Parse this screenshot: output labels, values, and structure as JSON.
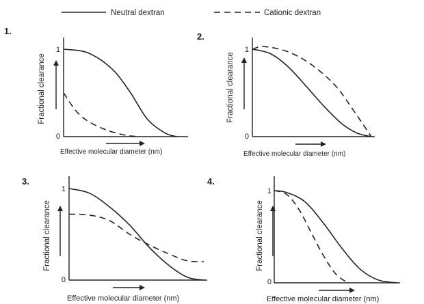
{
  "legend": {
    "neutral_label": "Neutral dextran",
    "cationic_label": "Cationic dextran"
  },
  "chart_data": [
    {
      "type": "line",
      "panel_label": "1.",
      "xlabel": "Effective molecular diameter (nm)",
      "ylabel": "Fractional clearance",
      "yticks": [
        "1",
        "0"
      ],
      "xlim": [
        0,
        1
      ],
      "ylim": [
        0,
        1.2
      ],
      "series": [
        {
          "name": "Neutral dextran",
          "style": "solid",
          "x": [
            0,
            0.2,
            0.4,
            0.55,
            0.7,
            0.85,
            0.95
          ],
          "y": [
            1.0,
            0.96,
            0.78,
            0.52,
            0.2,
            0.04,
            0.0
          ]
        },
        {
          "name": "Cationic dextran",
          "style": "dashed",
          "x": [
            0,
            0.1,
            0.2,
            0.35,
            0.5,
            0.62
          ],
          "y": [
            0.5,
            0.3,
            0.18,
            0.08,
            0.02,
            0.0
          ]
        }
      ]
    },
    {
      "type": "line",
      "panel_label": "2.",
      "xlabel": "Effective molecular diameter (nm)",
      "ylabel": "Fractional clearance",
      "yticks": [
        "1",
        "0"
      ],
      "xlim": [
        0,
        1
      ],
      "ylim": [
        0,
        1.2
      ],
      "series": [
        {
          "name": "Neutral dextran",
          "style": "solid",
          "x": [
            0,
            0.15,
            0.3,
            0.45,
            0.6,
            0.75,
            0.88,
            1.0
          ],
          "y": [
            1.0,
            0.95,
            0.8,
            0.58,
            0.35,
            0.15,
            0.04,
            0.0
          ]
        },
        {
          "name": "Cationic dextran",
          "style": "dashed",
          "x": [
            0,
            0.1,
            0.3,
            0.5,
            0.7,
            0.85,
            1.0
          ],
          "y": [
            1.0,
            1.03,
            0.97,
            0.82,
            0.58,
            0.3,
            0.0
          ]
        }
      ]
    },
    {
      "type": "line",
      "panel_label": "3.",
      "xlabel": "Effective molecular diameter (nm)",
      "ylabel": "Fractional clearance",
      "yticks": [
        "1",
        "0"
      ],
      "xlim": [
        0,
        1
      ],
      "ylim": [
        0,
        1.2
      ],
      "series": [
        {
          "name": "Neutral dextran",
          "style": "solid",
          "x": [
            0,
            0.15,
            0.3,
            0.45,
            0.6,
            0.75,
            0.88,
            1.0
          ],
          "y": [
            1.0,
            0.95,
            0.8,
            0.6,
            0.35,
            0.15,
            0.03,
            0.0
          ]
        },
        {
          "name": "Cationic dextran",
          "style": "dashed",
          "x": [
            0,
            0.15,
            0.3,
            0.45,
            0.6,
            0.75,
            0.88,
            1.0
          ],
          "y": [
            0.72,
            0.71,
            0.65,
            0.5,
            0.38,
            0.28,
            0.21,
            0.2
          ]
        }
      ]
    },
    {
      "type": "line",
      "panel_label": "4.",
      "xlabel": "Effective molecular diameter (nm)",
      "ylabel": "Fractional clearance",
      "yticks": [
        "1",
        "0"
      ],
      "xlim": [
        0,
        1
      ],
      "ylim": [
        0,
        1.2
      ],
      "series": [
        {
          "name": "Neutral dextran",
          "style": "solid",
          "x": [
            0,
            0.1,
            0.25,
            0.4,
            0.55,
            0.7,
            0.85,
            1.0
          ],
          "y": [
            1.0,
            0.98,
            0.88,
            0.65,
            0.38,
            0.15,
            0.03,
            0.0
          ]
        },
        {
          "name": "Cationic dextran",
          "style": "dashed",
          "x": [
            0,
            0.1,
            0.2,
            0.3,
            0.4,
            0.5,
            0.6
          ],
          "y": [
            1.0,
            0.96,
            0.8,
            0.55,
            0.3,
            0.1,
            0.0
          ]
        }
      ]
    }
  ]
}
